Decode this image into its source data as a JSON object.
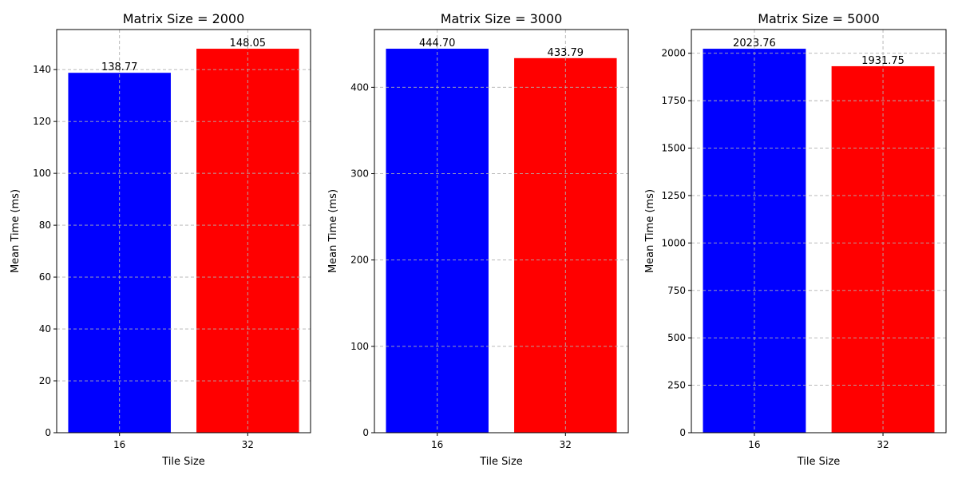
{
  "chart_data": [
    {
      "type": "bar",
      "title": "Matrix Size = 2000",
      "xlabel": "Tile Size",
      "ylabel": "Mean Time (ms)",
      "categories": [
        "16",
        "32"
      ],
      "values": [
        138.77,
        148.05
      ],
      "data_labels": [
        "138.77",
        "148.05"
      ],
      "colors": [
        "#0000ff",
        "#ff0000"
      ],
      "ylim": [
        0,
        155.45
      ],
      "yticks": [
        0,
        20,
        40,
        60,
        80,
        100,
        120,
        140
      ],
      "yticklabels": [
        "0",
        "20",
        "40",
        "60",
        "80",
        "100",
        "120",
        "140"
      ],
      "grid": true
    },
    {
      "type": "bar",
      "title": "Matrix Size = 3000",
      "xlabel": "Tile Size",
      "ylabel": "Mean Time (ms)",
      "categories": [
        "16",
        "32"
      ],
      "values": [
        444.7,
        433.79
      ],
      "data_labels": [
        "444.70",
        "433.79"
      ],
      "colors": [
        "#0000ff",
        "#ff0000"
      ],
      "ylim": [
        0,
        466.9
      ],
      "yticks": [
        0,
        100,
        200,
        300,
        400
      ],
      "yticklabels": [
        "0",
        "100",
        "200",
        "300",
        "400"
      ],
      "grid": true
    },
    {
      "type": "bar",
      "title": "Matrix Size = 5000",
      "xlabel": "Tile Size",
      "ylabel": "Mean Time (ms)",
      "categories": [
        "16",
        "32"
      ],
      "values": [
        2023.76,
        1931.75
      ],
      "data_labels": [
        "2023.76",
        "1931.75"
      ],
      "colors": [
        "#0000ff",
        "#ff0000"
      ],
      "ylim": [
        0,
        2125
      ],
      "yticks": [
        0,
        250,
        500,
        750,
        1000,
        1250,
        1500,
        1750,
        2000
      ],
      "yticklabels": [
        "0",
        "250",
        "500",
        "750",
        "1000",
        "1250",
        "1500",
        "1750",
        "2000"
      ],
      "grid": true
    }
  ]
}
